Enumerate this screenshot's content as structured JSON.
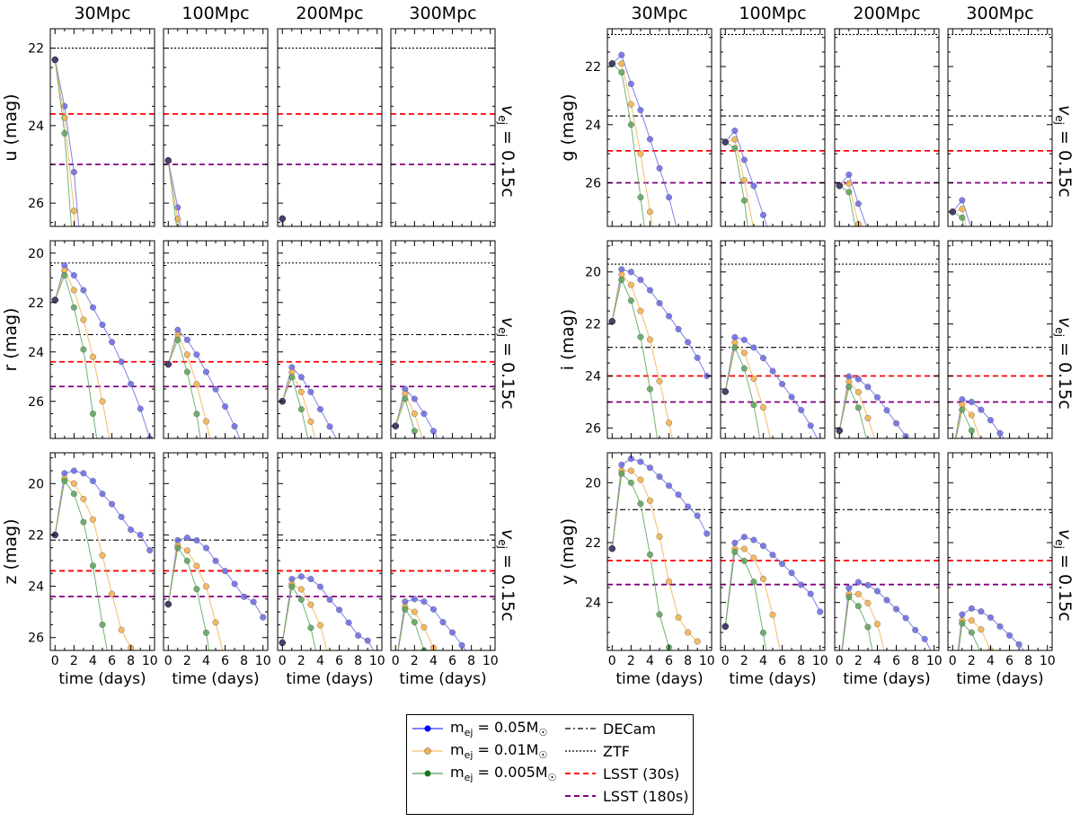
{
  "chart_data": {
    "type": "line",
    "layout": "2 groups x 3 rows x 4 columns of small-multiple panels",
    "columns": [
      "30Mpc",
      "100Mpc",
      "200Mpc",
      "300Mpc"
    ],
    "xlabel": "time (days)",
    "x_ticks": [
      0,
      2,
      4,
      6,
      8,
      10
    ],
    "xlim": [
      -0.5,
      10.5
    ],
    "y_axis_inverted": true,
    "row_annotation": "v_ej = 0.15c",
    "x": [
      0,
      1,
      2,
      3,
      4,
      5,
      6,
      7,
      8,
      9,
      10
    ],
    "series_styles": [
      {
        "label": "m_ej = 0.05M☉",
        "color": "#6a6ae8"
      },
      {
        "label": "m_ej = 0.01M☉",
        "color": "#f5b04a"
      },
      {
        "label": "m_ej = 0.005M☉",
        "color": "#5aa55a"
      }
    ],
    "threshold_styles": [
      {
        "label": "DECam",
        "color": "#000000",
        "dash": "dashdot"
      },
      {
        "label": "ZTF",
        "color": "#000000",
        "dash": "dotted"
      },
      {
        "label": "LSST (30s)",
        "color": "#ff0000",
        "dash": "dashed"
      },
      {
        "label": "LSST (180s)",
        "color": "#800080",
        "dash": "dashed"
      }
    ],
    "bands": [
      {
        "band": "u",
        "ylabel": "u (mag)",
        "ylim": [
          21.5,
          26.6
        ],
        "yticks": [
          22,
          24,
          26
        ],
        "thresholds": {
          "DECam": null,
          "ZTF": 22.0,
          "LSST (30s)": 23.7,
          "LSST (180s)": 25.0
        },
        "base": {
          "0.05": [
            22.3,
            23.5,
            25.2,
            28.0
          ],
          "0.01": [
            22.3,
            23.8,
            26.2,
            29.0
          ],
          "0.005": [
            22.3,
            24.2,
            27.5
          ]
        }
      },
      {
        "band": "g",
        "ylabel": "g (mag)",
        "ylim": [
          20.7,
          27.5
        ],
        "yticks": [
          22,
          24,
          26
        ],
        "thresholds": {
          "DECam": 23.7,
          "ZTF": 20.9,
          "LSST (30s)": 24.9,
          "LSST (180s)": 26.0
        },
        "base": {
          "0.05": [
            21.9,
            21.6,
            22.6,
            23.5,
            24.5,
            25.5,
            26.5,
            27.8
          ],
          "0.01": [
            21.9,
            21.9,
            23.3,
            25.0,
            27.0,
            29.0
          ],
          "0.005": [
            21.9,
            22.2,
            24.0,
            26.5,
            29.0
          ]
        }
      },
      {
        "band": "r",
        "ylabel": "r (mag)",
        "ylim": [
          19.5,
          27.5
        ],
        "yticks": [
          20,
          22,
          24,
          26
        ],
        "thresholds": {
          "DECam": 23.3,
          "ZTF": 20.4,
          "LSST (30s)": 24.4,
          "LSST (180s)": 25.4
        },
        "base": {
          "0.05": [
            21.9,
            20.5,
            20.9,
            21.5,
            22.2,
            22.9,
            23.6,
            24.4,
            25.3,
            26.3,
            27.5
          ],
          "0.01": [
            21.9,
            20.7,
            21.5,
            22.7,
            24.2,
            26.0,
            28.0
          ],
          "0.005": [
            21.9,
            20.9,
            22.2,
            23.9,
            26.5,
            29.0
          ]
        }
      },
      {
        "band": "i",
        "ylabel": "i (mag)",
        "ylim": [
          18.8,
          26.4
        ],
        "yticks": [
          20,
          22,
          24,
          26
        ],
        "thresholds": {
          "DECam": 22.9,
          "ZTF": 19.7,
          "LSST (30s)": 24.0,
          "LSST (180s)": 25.0
        },
        "base": {
          "0.05": [
            21.9,
            19.9,
            20.0,
            20.3,
            20.7,
            21.2,
            21.7,
            22.2,
            22.7,
            23.3,
            24.0
          ],
          "0.01": [
            21.9,
            20.1,
            20.5,
            21.5,
            22.6,
            24.2,
            25.8,
            27.5
          ],
          "0.005": [
            21.9,
            20.3,
            21.1,
            22.5,
            24.5,
            27.0
          ]
        }
      },
      {
        "band": "z",
        "ylabel": "z (mag)",
        "ylim": [
          18.8,
          26.5
        ],
        "yticks": [
          20,
          22,
          24,
          26
        ],
        "thresholds": {
          "DECam": 22.2,
          "ZTF": null,
          "LSST (30s)": 23.4,
          "LSST (180s)": 24.4
        },
        "base": {
          "0.05": [
            22.0,
            19.6,
            19.5,
            19.6,
            19.9,
            20.4,
            20.8,
            21.3,
            21.8,
            22.0,
            22.6
          ],
          "0.01": [
            22.0,
            19.8,
            20.0,
            20.6,
            21.4,
            22.8,
            24.3,
            25.7,
            26.4
          ],
          "0.005": [
            22.0,
            19.9,
            20.4,
            21.5,
            23.2,
            25.5,
            27.5
          ]
        }
      },
      {
        "band": "y",
        "ylabel": "y (mag)",
        "ylim": [
          19.0,
          25.6
        ],
        "yticks": [
          20,
          22,
          24
        ],
        "thresholds": {
          "DECam": 20.9,
          "ZTF": null,
          "LSST (30s)": 22.6,
          "LSST (180s)": 23.4
        },
        "base": {
          "0.05": [
            22.2,
            19.4,
            19.2,
            19.3,
            19.5,
            19.8,
            20.1,
            20.4,
            20.8,
            21.1,
            21.7
          ],
          "0.01": [
            22.2,
            19.6,
            19.6,
            19.9,
            20.6,
            21.8,
            23.3,
            24.5,
            25.0,
            25.3
          ],
          "0.005": [
            22.2,
            19.7,
            20.0,
            20.7,
            22.4,
            24.4,
            25.5
          ]
        }
      }
    ],
    "distance_offsets": [
      0,
      2.61,
      4.12,
      5.0
    ],
    "start_mag_by_column": {
      "u": [
        22.3,
        24.9,
        26.4,
        27.3
      ],
      "g": [
        21.9,
        24.6,
        26.1,
        27.0
      ],
      "r": [
        21.9,
        24.5,
        26.0,
        27.0
      ],
      "i": [
        21.9,
        24.6,
        26.1,
        27.0
      ],
      "z": [
        22.0,
        24.7,
        26.2,
        27.1
      ],
      "y": [
        22.2,
        24.8,
        26.3,
        27.2
      ]
    }
  },
  "legend": {
    "items": [
      {
        "text": "m",
        "sub": "ej",
        "rest": " = 0.05M",
        "sun": "☉",
        "color": "#0000ff",
        "kind": "marker"
      },
      {
        "text": "m",
        "sub": "ej",
        "rest": " = 0.01M",
        "sun": "☉",
        "color": "#f5b04a",
        "kind": "marker"
      },
      {
        "text": "m",
        "sub": "ej",
        "rest": " = 0.005M",
        "sun": "☉",
        "color": "#1a7a1a",
        "kind": "marker"
      }
    ],
    "lines": [
      {
        "text": "DECam",
        "color": "#000000",
        "dash": "6,3,2,3"
      },
      {
        "text": "ZTF",
        "color": "#000000",
        "dash": "2,2"
      },
      {
        "text": "LSST (30s)",
        "color": "#ff0000",
        "dash": "6,4"
      },
      {
        "text": "LSST (180s)",
        "color": "#800080",
        "dash": "6,4"
      }
    ]
  }
}
